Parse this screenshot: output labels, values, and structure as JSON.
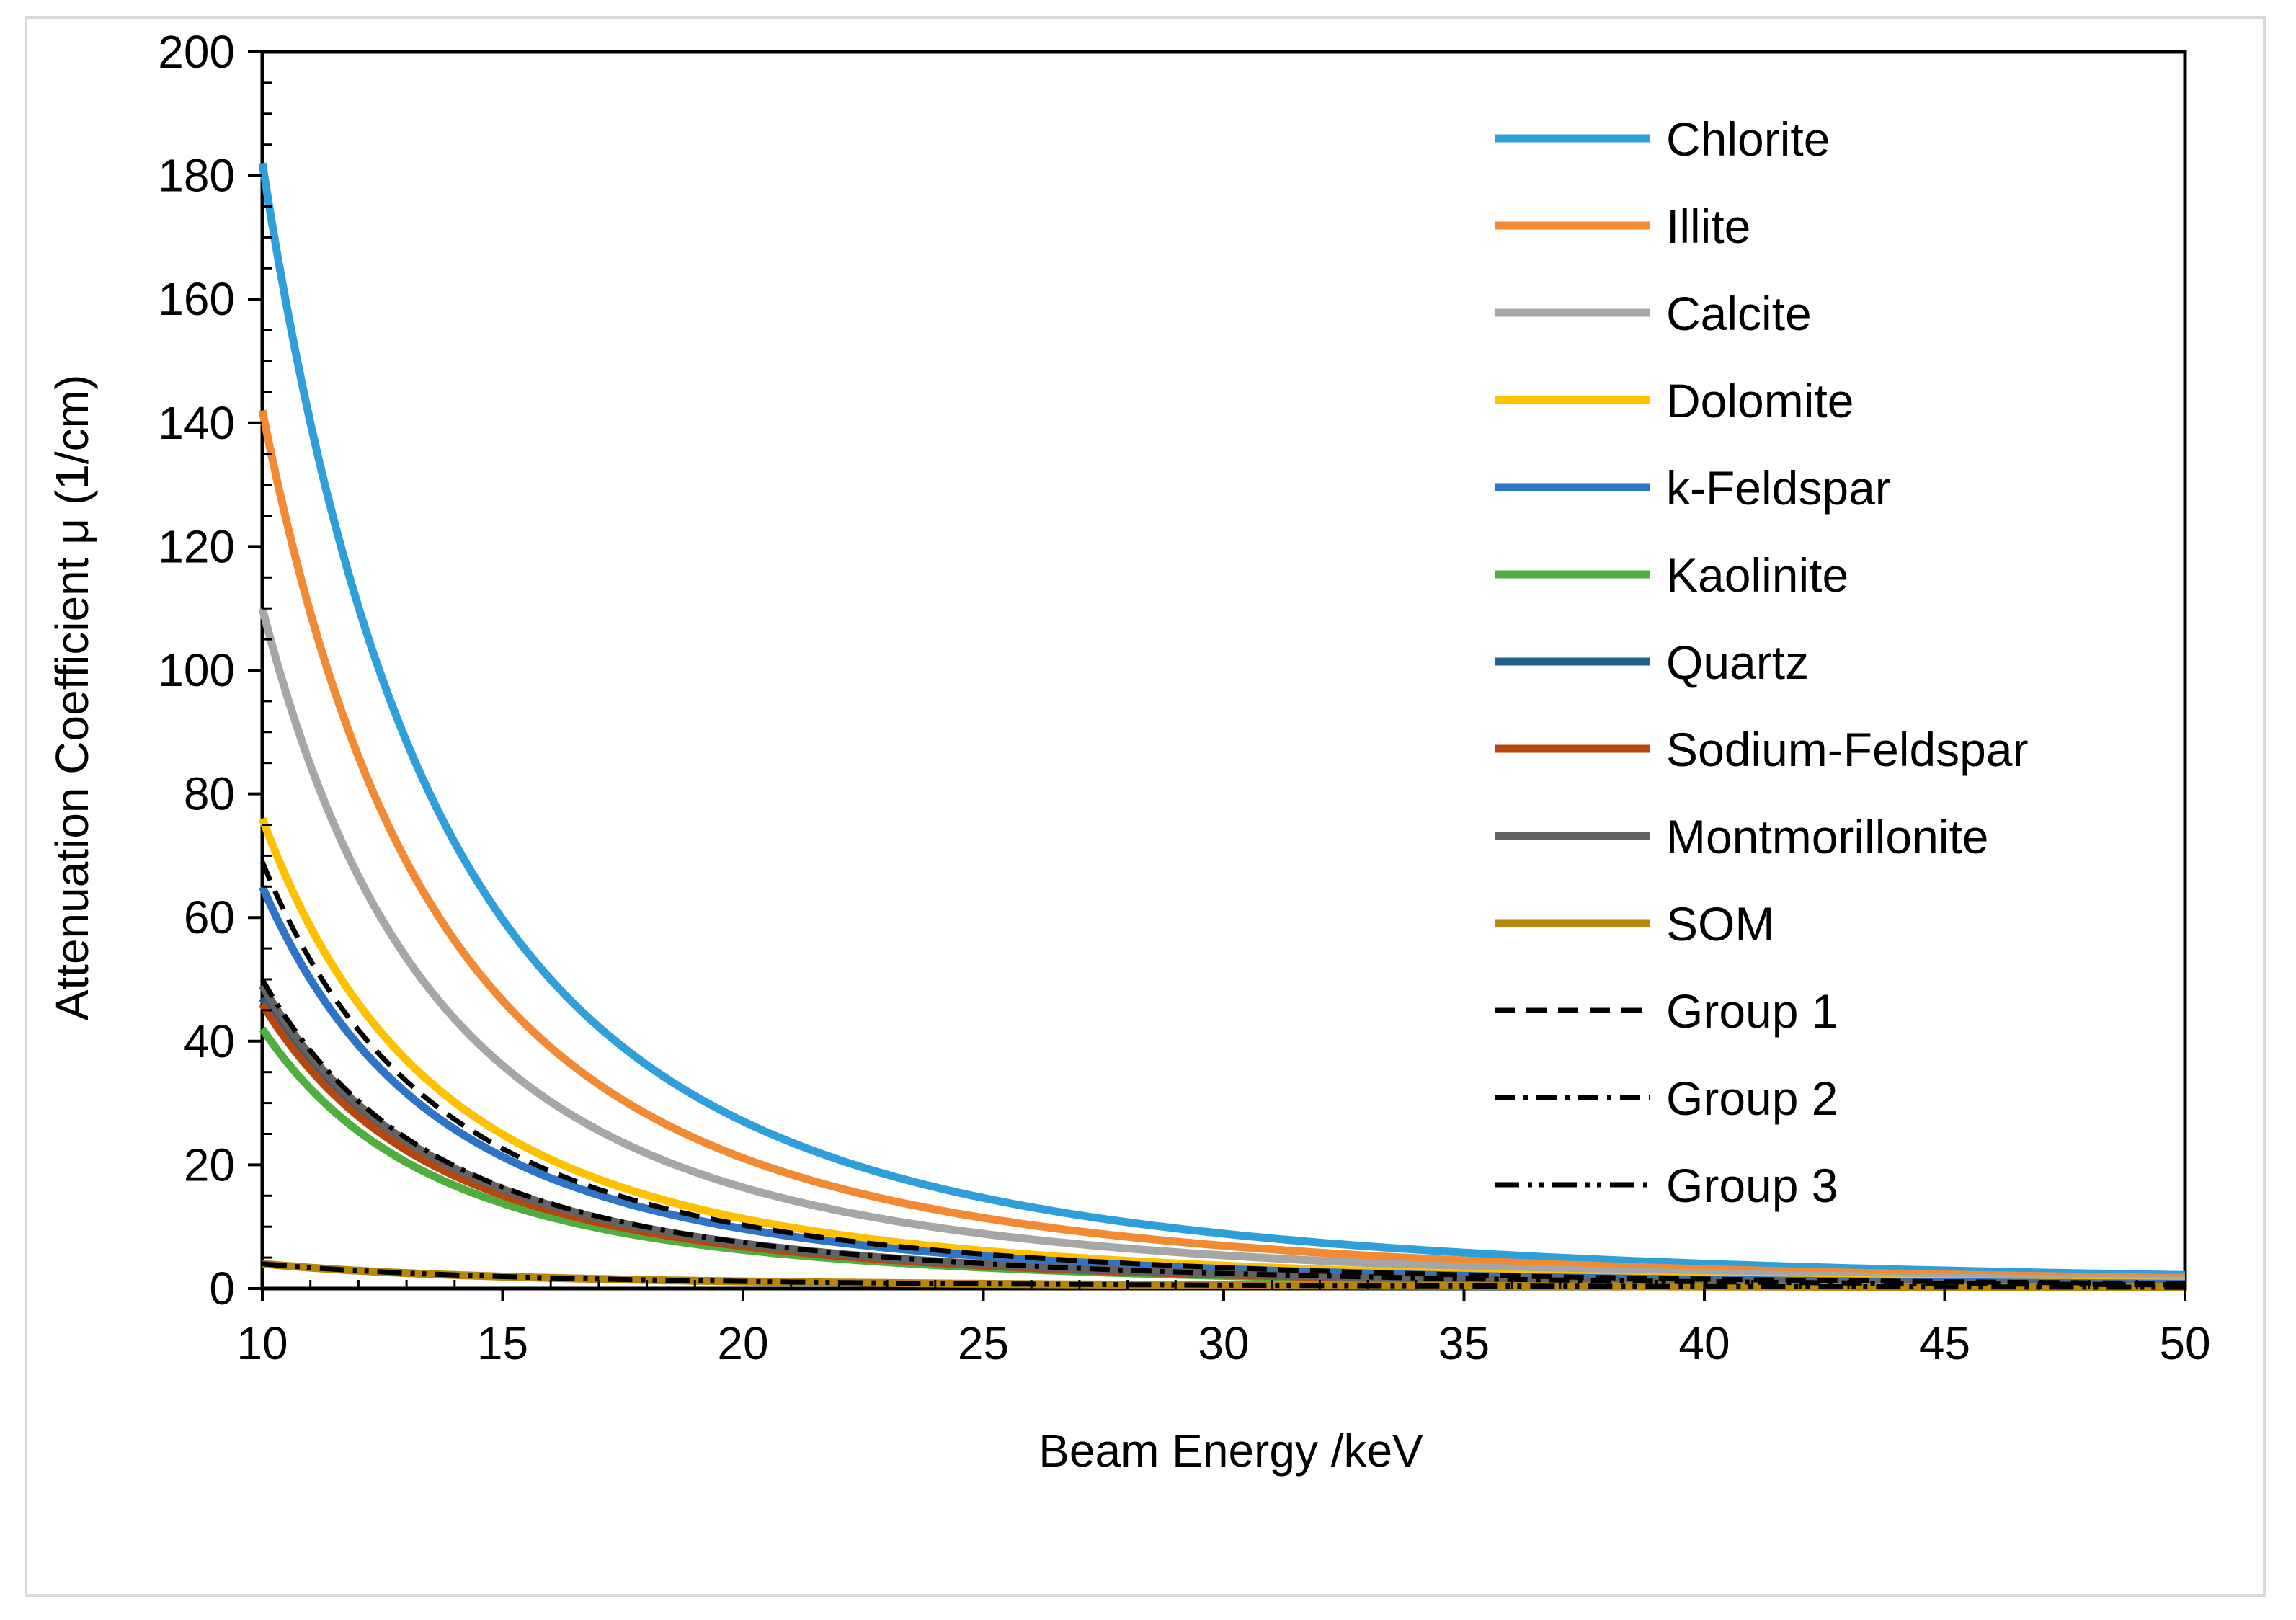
{
  "chart_data": {
    "type": "line",
    "title": "",
    "xlabel": "Beam Energy /keV",
    "ylabel": "Attenuation Coefficient μ (1/cm)",
    "xlim": [
      10,
      50
    ],
    "ylim": [
      0,
      200
    ],
    "xticks": [
      "10",
      "15",
      "20",
      "25",
      "30",
      "35",
      "40",
      "45",
      "50"
    ],
    "yticks": [
      "0",
      "20",
      "40",
      "60",
      "80",
      "100",
      "120",
      "140",
      "160",
      "180",
      "200"
    ],
    "grid": false,
    "legend_position": "top-right",
    "curve_model": "power-law y = y0*(E/10)^-n, E in keV",
    "series": [
      {
        "name": "Chlorite",
        "color": "#2E9FDA",
        "dash": "solid",
        "y0": 182,
        "n": 2.75
      },
      {
        "name": "Illite",
        "color": "#F28A33",
        "dash": "solid",
        "y0": 142,
        "n": 2.75
      },
      {
        "name": "Calcite",
        "color": "#A6A6A6",
        "dash": "solid",
        "y0": 110,
        "n": 2.75
      },
      {
        "name": "Dolomite",
        "color": "#FFC000",
        "dash": "solid",
        "y0": 76,
        "n": 2.75
      },
      {
        "name": "k-Feldspar",
        "color": "#2F75C7",
        "dash": "solid",
        "y0": 65,
        "n": 2.75
      },
      {
        "name": "Kaolinite",
        "color": "#4EAE3F",
        "dash": "solid",
        "y0": 42,
        "n": 2.75
      },
      {
        "name": "Quartz",
        "color": "#1F5F8F",
        "dash": "solid",
        "y0": 47,
        "n": 2.75
      },
      {
        "name": "Sodium-Feldspar",
        "color": "#B5470F",
        "dash": "solid",
        "y0": 46,
        "n": 2.75
      },
      {
        "name": "Montmorillonite",
        "color": "#636363",
        "dash": "solid",
        "y0": 49,
        "n": 2.75
      },
      {
        "name": "SOM",
        "color": "#B8860B",
        "dash": "solid",
        "y0": 4,
        "n": 1.8
      },
      {
        "name": "Group 1",
        "color": "#000000",
        "dash": "dash",
        "y0": 69,
        "n": 2.75
      },
      {
        "name": "Group 2",
        "color": "#000000",
        "dash": "dashdot",
        "y0": 50,
        "n": 2.75
      },
      {
        "name": "Group 3",
        "color": "#000000",
        "dash": "dashdotdot",
        "y0": 4,
        "n": 1.8
      }
    ]
  }
}
